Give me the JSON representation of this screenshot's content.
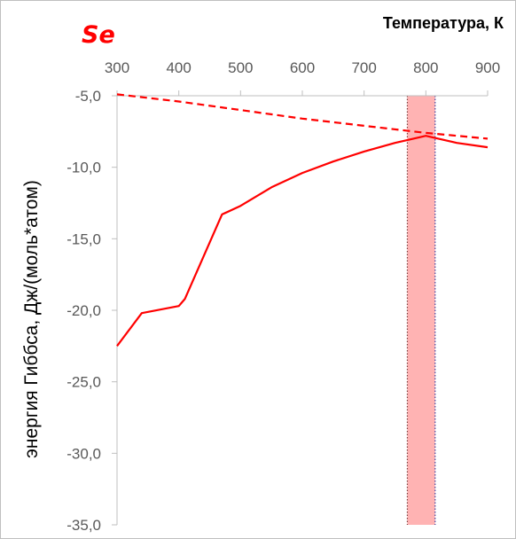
{
  "chart_data": {
    "type": "line",
    "title": "Se",
    "xlabel": "Температура, К",
    "ylabel": "энергия Гиббса, Дж/(моль*атом)",
    "xlim": [
      300,
      900
    ],
    "ylim": [
      -35,
      -5
    ],
    "x_ticks": [
      300,
      400,
      500,
      600,
      700,
      800,
      900
    ],
    "x_tick_labels": [
      "300",
      "400",
      "500",
      "600",
      "700",
      "800",
      "900"
    ],
    "y_ticks": [
      -5,
      -10,
      -15,
      -20,
      -25,
      -30,
      -35
    ],
    "y_tick_labels": [
      "-5,0",
      "-10,0",
      "-15,0",
      "-20,0",
      "-25,0",
      "-30,0",
      "-35,0"
    ],
    "x_axis_position": "top",
    "grid": false,
    "series": [
      {
        "style": "solid",
        "color": "#ff0000",
        "x": [
          300,
          340,
          400,
          410,
          470,
          500,
          550,
          600,
          650,
          700,
          750,
          790,
          800,
          810,
          850,
          900
        ],
        "y": [
          -22.5,
          -20.2,
          -19.7,
          -19.2,
          -13.3,
          -12.7,
          -11.4,
          -10.4,
          -9.6,
          -8.9,
          -8.3,
          -7.9,
          -7.8,
          -7.9,
          -8.3,
          -8.6
        ]
      },
      {
        "style": "dashed",
        "color": "#ff0000",
        "x": [
          300,
          400,
          500,
          600,
          700,
          800,
          900
        ],
        "y": [
          -4.9,
          -5.4,
          -6.0,
          -6.6,
          -7.1,
          -7.6,
          -8.0
        ]
      }
    ],
    "highlight_band": {
      "x_start": 770,
      "x_end": 815,
      "color": "#ffb3b3"
    }
  }
}
